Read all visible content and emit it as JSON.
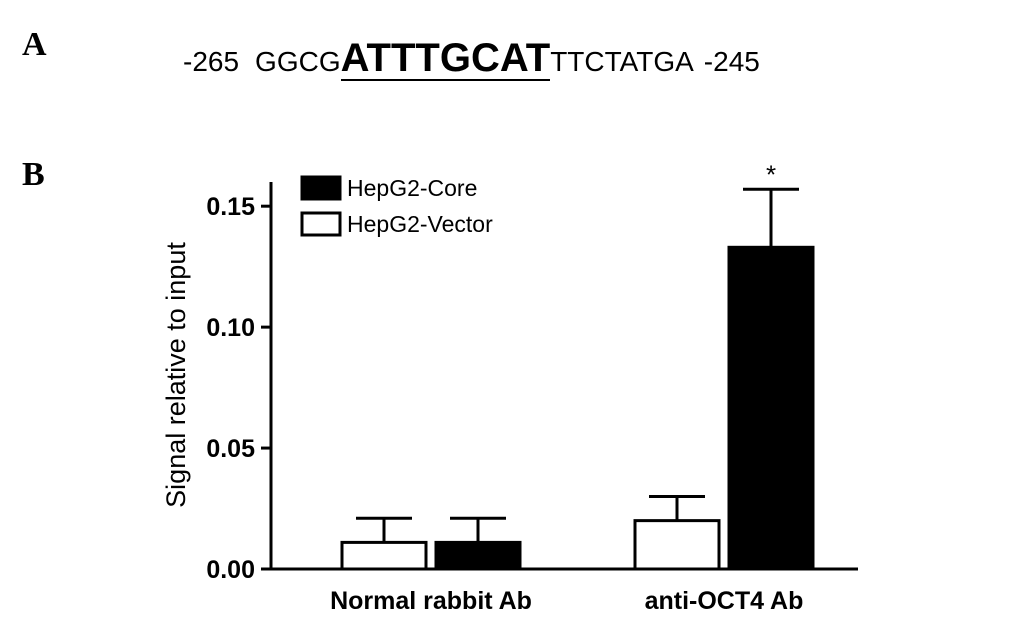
{
  "panel_a": {
    "label": "A",
    "seq_start": "-265",
    "seq_prefix": "GGCG",
    "seq_motif": "ATTTGCAT",
    "seq_suffix": "TTCTATGA",
    "seq_end": "-245"
  },
  "panel_b": {
    "label": "B"
  },
  "chart_data": {
    "type": "bar",
    "categories": [
      "Normal rabbit Ab",
      "anti-OCT4 Ab"
    ],
    "series": [
      {
        "name": "HepG2-Vector",
        "values": [
          0.011,
          0.02
        ],
        "errors": [
          0.01,
          0.01
        ],
        "color": "#ffffff"
      },
      {
        "name": "HepG2-Core",
        "values": [
          0.011,
          0.133
        ],
        "errors": [
          0.01,
          0.024
        ],
        "color": "#000000"
      }
    ],
    "series_order_in_group": [
      "HepG2-Vector",
      "HepG2-Core"
    ],
    "legend_order": [
      "HepG2-Core",
      "HepG2-Vector"
    ],
    "legend_position": "top-left",
    "ylabel": "Signal relative to input",
    "xlabel": "",
    "ylim": [
      0,
      0.16
    ],
    "yticks": [
      0.0,
      0.05,
      0.1,
      0.15
    ],
    "ytick_labels": [
      "0.00",
      "0.05",
      "0.10",
      "0.15"
    ],
    "annotations": [
      {
        "text": "*",
        "category": "anti-OCT4 Ab",
        "series": "HepG2-Core"
      }
    ],
    "grid": false
  }
}
